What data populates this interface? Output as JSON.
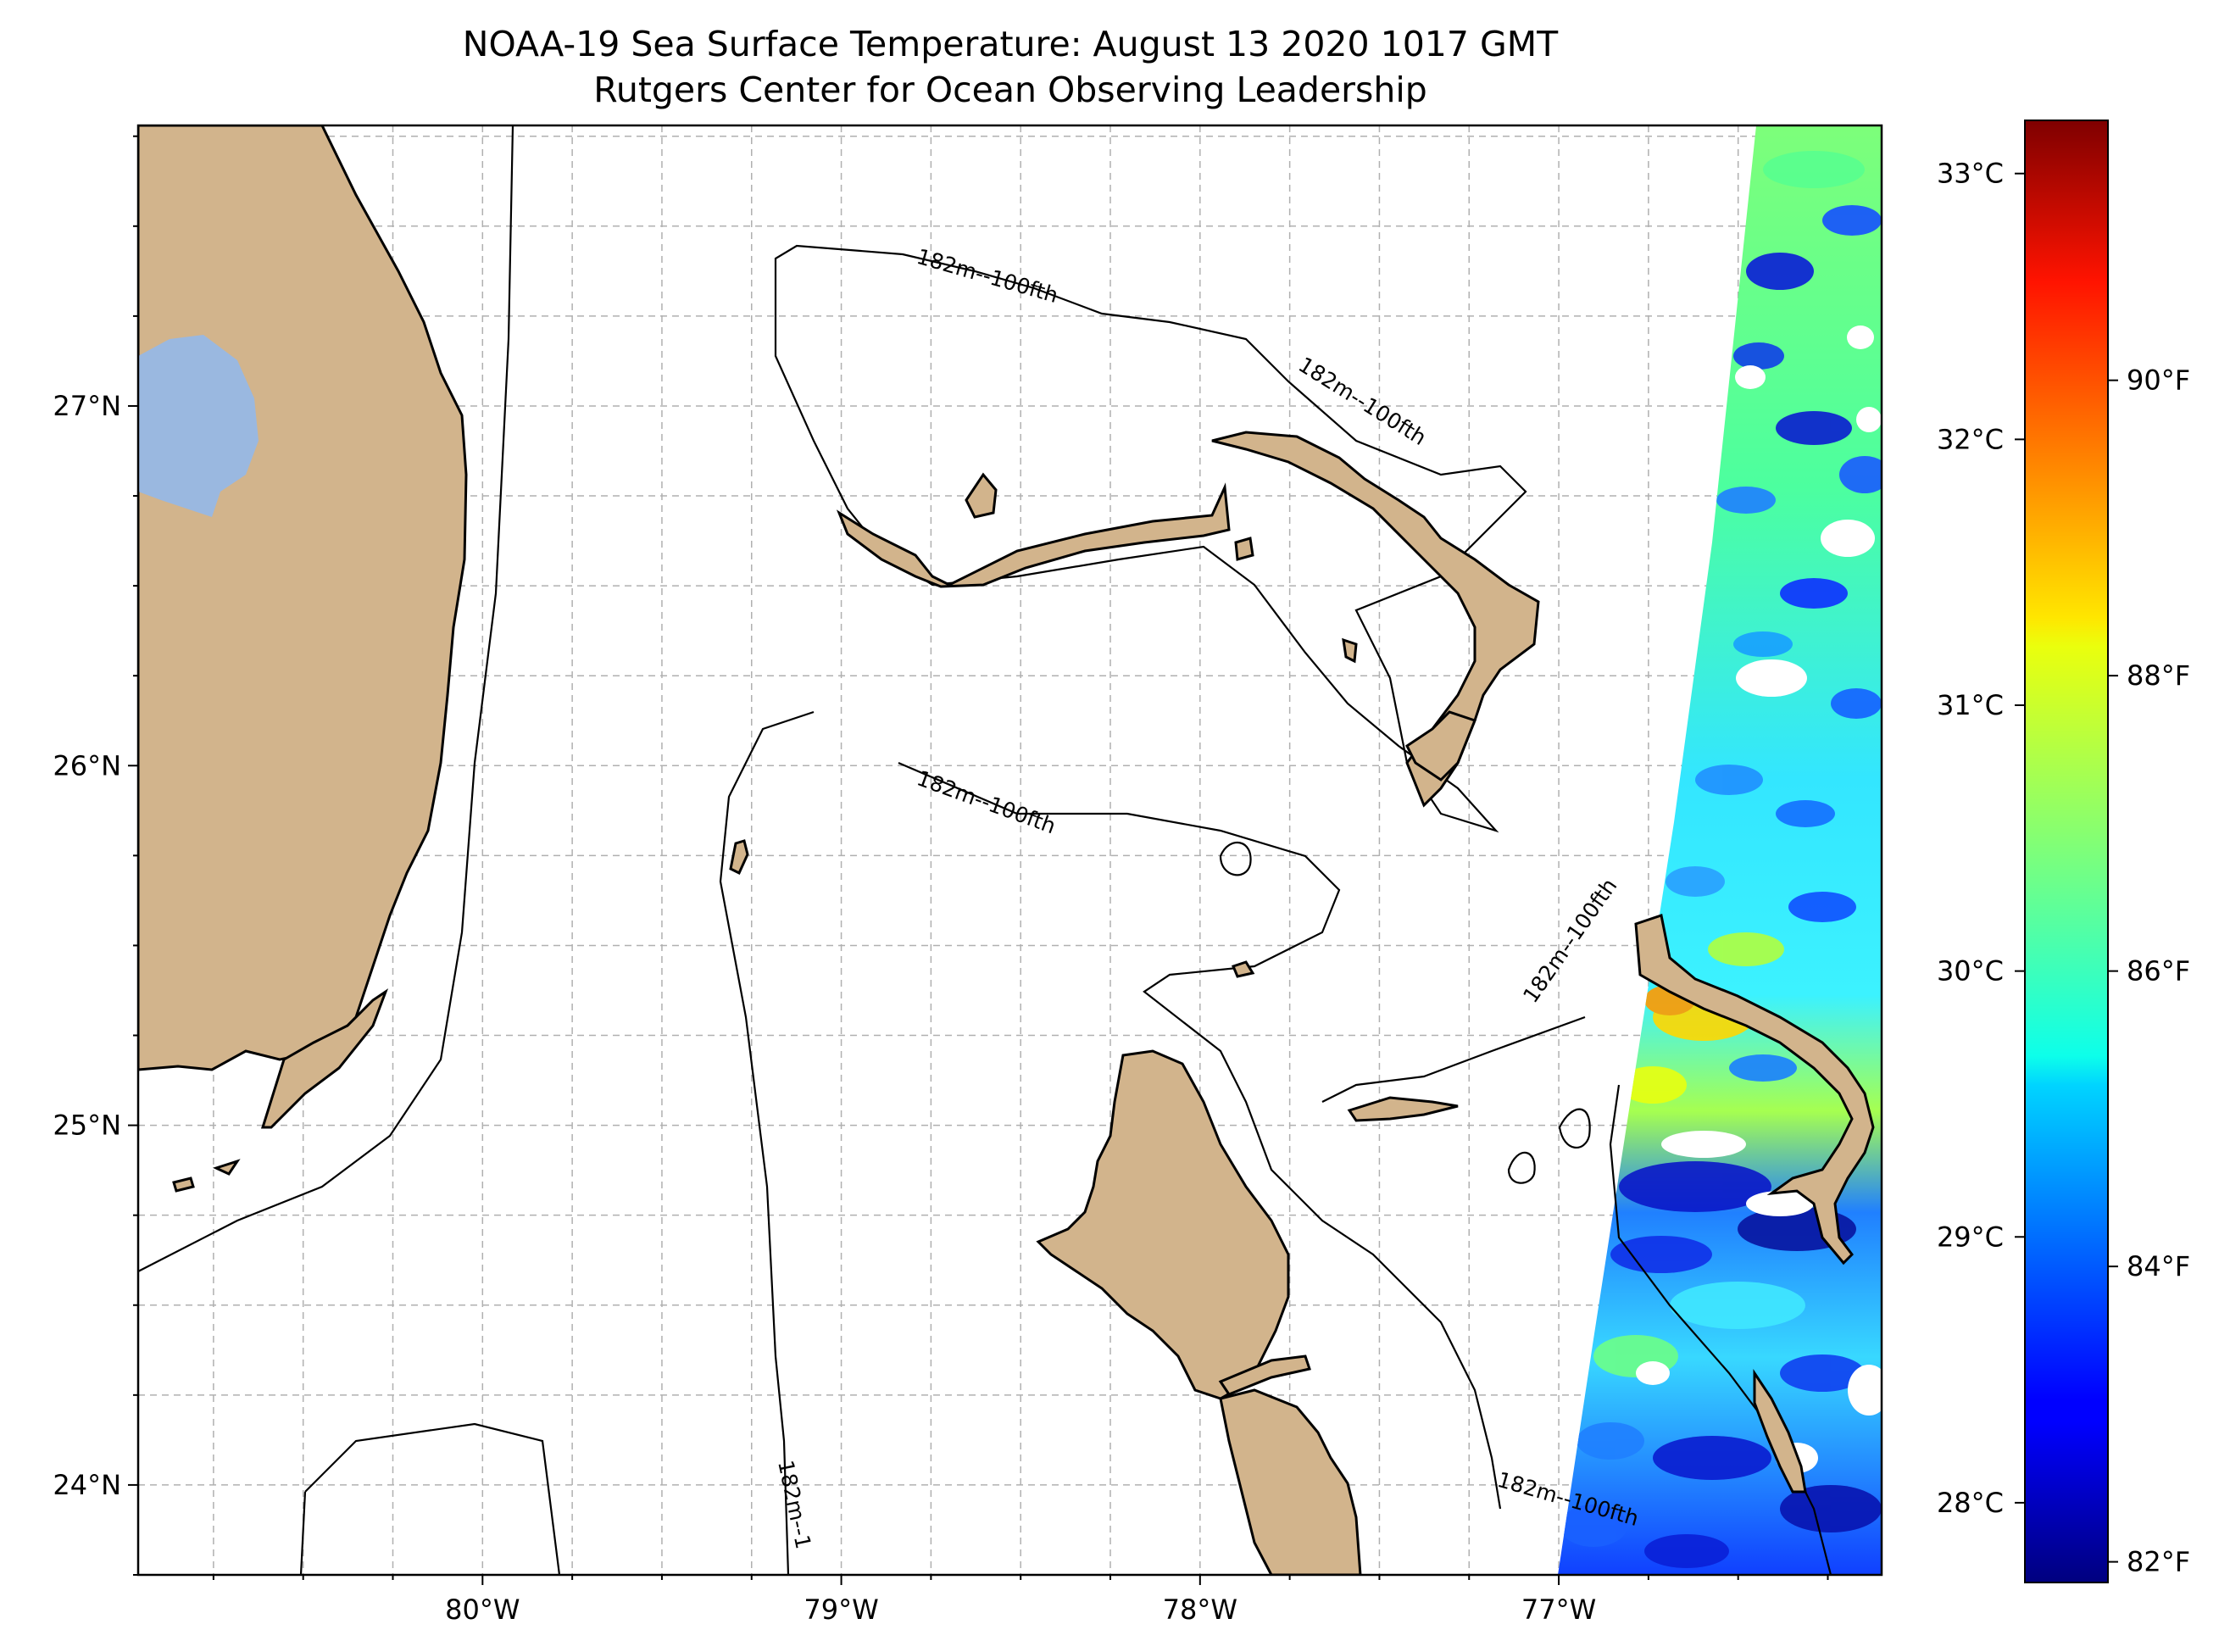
{
  "title": {
    "line1": "NOAA-19 Sea Surface Temperature: August 13 2020 1017 GMT",
    "line2": "Rutgers Center for Ocean Observing Leadership"
  },
  "map": {
    "extent": {
      "lon_min": -80.96,
      "lon_max": -76.1,
      "lat_min": 23.75,
      "lat_max": 27.78
    },
    "x_ticks": [
      {
        "value": -80,
        "label": "80°W"
      },
      {
        "value": -79,
        "label": "79°W"
      },
      {
        "value": -78,
        "label": "78°W"
      },
      {
        "value": -77,
        "label": "77°W"
      }
    ],
    "y_ticks": [
      {
        "value": 24,
        "label": "24°N"
      },
      {
        "value": 25,
        "label": "25°N"
      },
      {
        "value": 26,
        "label": "26°N"
      },
      {
        "value": 27,
        "label": "27°N"
      }
    ],
    "grid": true,
    "contour_label": "182m--100fth",
    "contour_label_clipped": "182m--1",
    "colors": {
      "land": "#d2b48c",
      "lake": "#9ab8e0",
      "grid": "#b0b0b0"
    }
  },
  "colorbar": {
    "colormap": "jet",
    "celsius_range": [
      27.7,
      33.2
    ],
    "celsius_ticks": [
      {
        "value": 28,
        "label": "28°C"
      },
      {
        "value": 29,
        "label": "29°C"
      },
      {
        "value": 30,
        "label": "30°C"
      },
      {
        "value": 31,
        "label": "31°C"
      },
      {
        "value": 32,
        "label": "32°C"
      },
      {
        "value": 33,
        "label": "33°C"
      }
    ],
    "fahrenheit_ticks": [
      {
        "value": 82,
        "label": "82°F"
      },
      {
        "value": 84,
        "label": "84°F"
      },
      {
        "value": 86,
        "label": "86°F"
      },
      {
        "value": 88,
        "label": "88°F"
      },
      {
        "value": 90,
        "label": "90°F"
      }
    ]
  }
}
